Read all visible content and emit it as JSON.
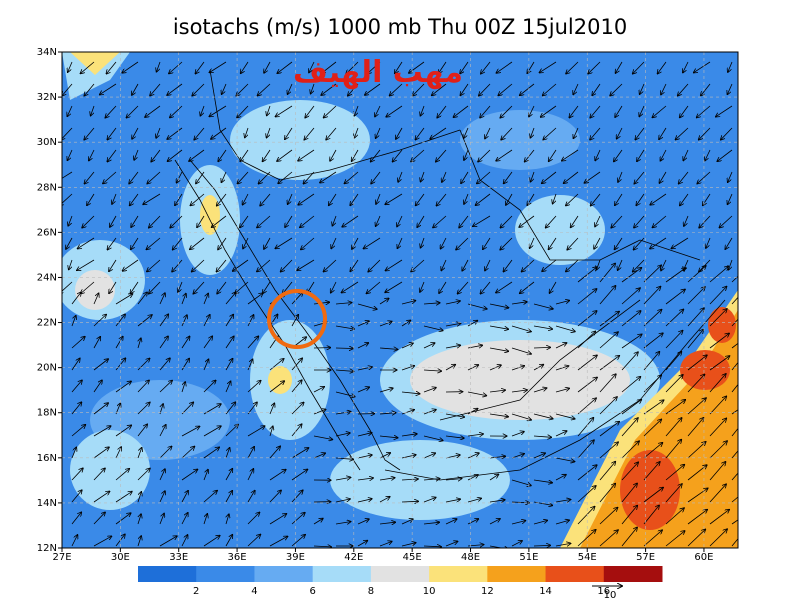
{
  "map": {
    "title": "isotachs (m/s) 1000 mb Thu 00Z 15jul2010",
    "annotation": "مهب الهيف",
    "lat_ticks": [
      {
        "value": 12,
        "label": "12N"
      },
      {
        "value": 14,
        "label": "14N"
      },
      {
        "value": 16,
        "label": "16N"
      },
      {
        "value": 18,
        "label": "18N"
      },
      {
        "value": 20,
        "label": "20N"
      },
      {
        "value": 22,
        "label": "22N"
      },
      {
        "value": 24,
        "label": "24N"
      },
      {
        "value": 26,
        "label": "26N"
      },
      {
        "value": 28,
        "label": "28N"
      },
      {
        "value": 30,
        "label": "30N"
      },
      {
        "value": 32,
        "label": "32N"
      },
      {
        "value": 34,
        "label": "34N"
      }
    ],
    "lon_ticks": [
      {
        "value": 27,
        "label": "27E"
      },
      {
        "value": 30,
        "label": "30E"
      },
      {
        "value": 33,
        "label": "33E"
      },
      {
        "value": 36,
        "label": "36E"
      },
      {
        "value": 39,
        "label": "39E"
      },
      {
        "value": 42,
        "label": "42E"
      },
      {
        "value": 45,
        "label": "45E"
      },
      {
        "value": 48,
        "label": "48E"
      },
      {
        "value": 51,
        "label": "51E"
      },
      {
        "value": 54,
        "label": "54E"
      },
      {
        "value": 57,
        "label": "57E"
      },
      {
        "value": 60,
        "label": "60E"
      }
    ],
    "latlim": [
      12,
      34
    ],
    "lonlim": [
      27,
      61.75
    ],
    "colorbar": {
      "levels": [
        2,
        4,
        6,
        8,
        10,
        12,
        14,
        16
      ],
      "colors": [
        "#1e6fd9",
        "#3a8ae8",
        "#66abf2",
        "#a6dcf8",
        "#e2e2e2",
        "#fbe27a",
        "#f5a11c",
        "#e8501a",
        "#a50e0e"
      ]
    },
    "reference_vector": 10
  }
}
